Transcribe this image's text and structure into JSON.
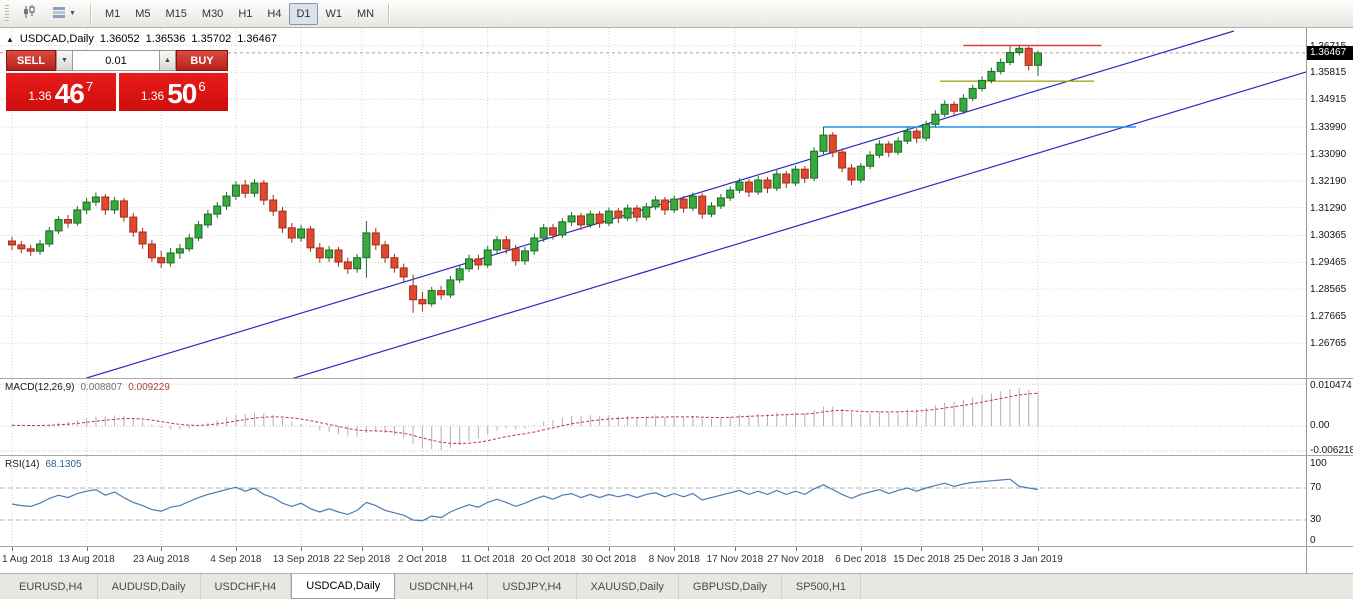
{
  "toolbar": {
    "timeframes": [
      "M1",
      "M5",
      "M15",
      "M30",
      "H1",
      "H4",
      "D1",
      "W1",
      "MN"
    ],
    "active_timeframe": "D1"
  },
  "icons": {
    "title_marker": "▲",
    "dropdown_caret": "▼",
    "spin_up": "▲",
    "spin_down": "▼"
  },
  "chart": {
    "title": {
      "symbol": "USDCAD,Daily",
      "open": "1.36052",
      "high": "1.36536",
      "low": "1.35702",
      "close": "1.36467"
    },
    "trade_panel": {
      "sell_label": "SELL",
      "buy_label": "BUY",
      "volume": "0.01",
      "sell_price": {
        "big": "1.36",
        "pips": "46",
        "pipette": "7"
      },
      "buy_price": {
        "big": "1.36",
        "pips": "50",
        "pipette": "6"
      }
    }
  },
  "colors": {
    "bull_fill": "#38a93f",
    "bull_border": "#1d6b23",
    "bear_fill": "#e0492e",
    "bear_border": "#9c2f1d",
    "channel": "#2b2bc4",
    "grid": "#d4d4d4",
    "macd_bar": "#b0b0b0",
    "macd_signal": "#cc3333",
    "rsi": "#4c7bb3",
    "accent_red": "#d32f2f"
  },
  "chart_data": {
    "type": "candlestick",
    "symbol": "USDCAD",
    "timeframe": "Daily",
    "price_range": {
      "top": 1.373,
      "bottom": 1.256
    },
    "current": {
      "text": "1.36467",
      "price": 1.36467
    },
    "price_axis_labels": [
      {
        "text": "1.36715",
        "price": 1.36715
      },
      {
        "text": "1.35815",
        "price": 1.35815
      },
      {
        "text": "1.34915",
        "price": 1.34915
      },
      {
        "text": "1.33990",
        "price": 1.3399
      },
      {
        "text": "1.33090",
        "price": 1.3309
      },
      {
        "text": "1.32190",
        "price": 1.3219
      },
      {
        "text": "1.31290",
        "price": 1.3129
      },
      {
        "text": "1.30365",
        "price": 1.30365
      },
      {
        "text": "1.29465",
        "price": 1.29465
      },
      {
        "text": "1.28565",
        "price": 1.28565
      },
      {
        "text": "1.27665",
        "price": 1.27665
      },
      {
        "text": "1.26765",
        "price": 1.26765
      }
    ],
    "x_ticks": [
      {
        "i": 0,
        "label": "1 Aug 2018"
      },
      {
        "i": 8,
        "label": "13 Aug 2018"
      },
      {
        "i": 16,
        "label": "23 Aug 2018"
      },
      {
        "i": 24,
        "label": "4 Sep 2018"
      },
      {
        "i": 31,
        "label": "13 Sep 2018"
      },
      {
        "i": 37.5,
        "label": "22 Sep 2018"
      },
      {
        "i": 44,
        "label": "2 Oct 2018"
      },
      {
        "i": 51,
        "label": "11 Oct 2018"
      },
      {
        "i": 57.5,
        "label": "20 Oct 2018"
      },
      {
        "i": 64,
        "label": "30 Oct 2018"
      },
      {
        "i": 71,
        "label": "8 Nov 2018"
      },
      {
        "i": 77.5,
        "label": "17 Nov 2018"
      },
      {
        "i": 84,
        "label": "27 Nov 2018"
      },
      {
        "i": 91,
        "label": "6 Dec 2018"
      },
      {
        "i": 97.5,
        "label": "15 Dec 2018"
      },
      {
        "i": 104,
        "label": "25 Dec 2018"
      },
      {
        "i": 110,
        "label": "3 Jan 2019"
      }
    ],
    "objects": {
      "channel_upper": {
        "color": "#2b2bc4",
        "p1": {
          "i": 8,
          "p": 1.256
        },
        "p2": {
          "i": 131,
          "p": 1.372
        }
      },
      "channel_lower": {
        "color": "#2b2bc4",
        "p1": {
          "i": 8,
          "p": 1.235
        },
        "p2": {
          "i": 145,
          "p": 1.3642
        }
      },
      "resistance": {
        "color": "#e03b3b",
        "price": 1.36715,
        "from_i": 102,
        "to_i": 116.8
      },
      "support_olive": {
        "color": "#a3a71a",
        "price": 1.3552,
        "from_i": 99.5,
        "to_i": 116
      },
      "support_blue": {
        "color": "#1f8fe8",
        "price": 1.3399,
        "from_i": 87,
        "to_i": 120.5
      }
    },
    "candles": [
      [
        1.3018,
        1.3032,
        1.2988,
        1.3005
      ],
      [
        1.3005,
        1.3018,
        1.2978,
        1.2992
      ],
      [
        1.2992,
        1.3005,
        1.2968,
        1.2984
      ],
      [
        1.2984,
        1.3022,
        1.2972,
        1.3008
      ],
      [
        1.3008,
        1.3065,
        1.2998,
        1.3052
      ],
      [
        1.3052,
        1.3102,
        1.3042,
        1.309
      ],
      [
        1.309,
        1.3105,
        1.3062,
        1.3078
      ],
      [
        1.3078,
        1.3135,
        1.3068,
        1.3122
      ],
      [
        1.3122,
        1.3162,
        1.3108,
        1.3148
      ],
      [
        1.3148,
        1.318,
        1.3135,
        1.3165
      ],
      [
        1.3165,
        1.3175,
        1.3105,
        1.3122
      ],
      [
        1.3122,
        1.3165,
        1.3108,
        1.3152
      ],
      [
        1.3152,
        1.3162,
        1.3082,
        1.3098
      ],
      [
        1.3098,
        1.3112,
        1.3032,
        1.3048
      ],
      [
        1.3048,
        1.3062,
        1.2992,
        1.3008
      ],
      [
        1.3008,
        1.3022,
        1.2948,
        1.2962
      ],
      [
        1.2962,
        1.2985,
        1.2928,
        1.2945
      ],
      [
        1.2945,
        1.2995,
        1.2932,
        1.2978
      ],
      [
        1.2978,
        1.3008,
        1.2958,
        1.2992
      ],
      [
        1.2992,
        1.3042,
        1.2982,
        1.3028
      ],
      [
        1.3028,
        1.3085,
        1.3018,
        1.3072
      ],
      [
        1.3072,
        1.3122,
        1.3062,
        1.3108
      ],
      [
        1.3108,
        1.3148,
        1.3095,
        1.3135
      ],
      [
        1.3135,
        1.3182,
        1.3122,
        1.3168
      ],
      [
        1.3168,
        1.3218,
        1.3155,
        1.3205
      ],
      [
        1.3205,
        1.3222,
        1.3162,
        1.3178
      ],
      [
        1.3178,
        1.3225,
        1.3165,
        1.3212
      ],
      [
        1.3212,
        1.3222,
        1.3138,
        1.3155
      ],
      [
        1.3155,
        1.3172,
        1.3102,
        1.3118
      ],
      [
        1.3118,
        1.3132,
        1.3045,
        1.3062
      ],
      [
        1.3062,
        1.3078,
        1.3012,
        1.3028
      ],
      [
        1.3028,
        1.3072,
        1.3015,
        1.3058
      ],
      [
        1.3058,
        1.3068,
        1.2982,
        1.2995
      ],
      [
        1.2995,
        1.3012,
        1.2945,
        1.2962
      ],
      [
        1.2962,
        1.3002,
        1.2948,
        1.2988
      ],
      [
        1.2988,
        1.2998,
        1.2932,
        1.2948
      ],
      [
        1.2948,
        1.2962,
        1.2908,
        1.2925
      ],
      [
        1.2925,
        1.2975,
        1.2912,
        1.2962
      ],
      [
        1.2962,
        1.3085,
        1.2895,
        1.3045
      ],
      [
        1.3045,
        1.3062,
        1.2988,
        1.3005
      ],
      [
        1.3005,
        1.3018,
        1.2945,
        1.2962
      ],
      [
        1.2962,
        1.2975,
        1.2912,
        1.2928
      ],
      [
        1.2928,
        1.2942,
        1.2878,
        1.2898
      ],
      [
        1.2868,
        1.2905,
        1.2778,
        1.2822
      ],
      [
        1.2822,
        1.2848,
        1.2782,
        1.2808
      ],
      [
        1.2808,
        1.2865,
        1.2798,
        1.2852
      ],
      [
        1.2852,
        1.2868,
        1.2822,
        1.2838
      ],
      [
        1.2838,
        1.2902,
        1.2828,
        1.2888
      ],
      [
        1.2888,
        1.2938,
        1.2878,
        1.2925
      ],
      [
        1.2925,
        1.2972,
        1.2915,
        1.2958
      ],
      [
        1.2958,
        1.2972,
        1.2922,
        1.2938
      ],
      [
        1.2938,
        1.3002,
        1.2928,
        1.2988
      ],
      [
        1.2988,
        1.3035,
        1.2975,
        1.3022
      ],
      [
        1.3022,
        1.3035,
        1.2975,
        1.2992
      ],
      [
        1.2992,
        1.3005,
        1.2935,
        1.2952
      ],
      [
        1.2952,
        1.2998,
        1.2938,
        1.2985
      ],
      [
        1.2985,
        1.3042,
        1.2972,
        1.3028
      ],
      [
        1.3028,
        1.3075,
        1.3015,
        1.3062
      ],
      [
        1.3062,
        1.3075,
        1.3022,
        1.3038
      ],
      [
        1.3038,
        1.3095,
        1.3028,
        1.3082
      ],
      [
        1.3082,
        1.3115,
        1.3068,
        1.3102
      ],
      [
        1.3102,
        1.3112,
        1.3055,
        1.3072
      ],
      [
        1.3072,
        1.312,
        1.3062,
        1.3108
      ],
      [
        1.3108,
        1.3118,
        1.3062,
        1.3078
      ],
      [
        1.3078,
        1.313,
        1.3068,
        1.3118
      ],
      [
        1.3118,
        1.3128,
        1.3078,
        1.3095
      ],
      [
        1.3095,
        1.314,
        1.3085,
        1.3128
      ],
      [
        1.3128,
        1.3138,
        1.3082,
        1.3098
      ],
      [
        1.3098,
        1.3145,
        1.3088,
        1.3132
      ],
      [
        1.3132,
        1.3168,
        1.3122,
        1.3155
      ],
      [
        1.3155,
        1.3165,
        1.3105,
        1.3122
      ],
      [
        1.3122,
        1.317,
        1.3112,
        1.3158
      ],
      [
        1.3158,
        1.3168,
        1.3112,
        1.3128
      ],
      [
        1.3128,
        1.318,
        1.3118,
        1.3168
      ],
      [
        1.3168,
        1.3178,
        1.3092,
        1.3108
      ],
      [
        1.3108,
        1.3148,
        1.3098,
        1.3135
      ],
      [
        1.3135,
        1.3175,
        1.3125,
        1.3162
      ],
      [
        1.3162,
        1.32,
        1.3152,
        1.3188
      ],
      [
        1.3188,
        1.3228,
        1.3178,
        1.3215
      ],
      [
        1.3215,
        1.3225,
        1.3165,
        1.3182
      ],
      [
        1.3182,
        1.3235,
        1.3172,
        1.3222
      ],
      [
        1.3222,
        1.3232,
        1.3178,
        1.3195
      ],
      [
        1.3195,
        1.3255,
        1.3185,
        1.3242
      ],
      [
        1.3242,
        1.3252,
        1.3195,
        1.3212
      ],
      [
        1.3212,
        1.327,
        1.3202,
        1.3258
      ],
      [
        1.3258,
        1.3268,
        1.3212,
        1.3228
      ],
      [
        1.3228,
        1.3332,
        1.3218,
        1.3318
      ],
      [
        1.3318,
        1.34,
        1.3308,
        1.3372
      ],
      [
        1.3372,
        1.3382,
        1.3298,
        1.3315
      ],
      [
        1.3315,
        1.3328,
        1.3248,
        1.3262
      ],
      [
        1.3262,
        1.3275,
        1.3205,
        1.3222
      ],
      [
        1.3222,
        1.328,
        1.3212,
        1.3268
      ],
      [
        1.3268,
        1.3318,
        1.3258,
        1.3305
      ],
      [
        1.3305,
        1.3355,
        1.3295,
        1.3342
      ],
      [
        1.3342,
        1.3352,
        1.3298,
        1.3315
      ],
      [
        1.3315,
        1.3365,
        1.3305,
        1.3352
      ],
      [
        1.3352,
        1.3398,
        1.3342,
        1.3385
      ],
      [
        1.3385,
        1.3395,
        1.3345,
        1.3362
      ],
      [
        1.3362,
        1.342,
        1.3352,
        1.3408
      ],
      [
        1.3408,
        1.3455,
        1.3398,
        1.3442
      ],
      [
        1.3442,
        1.3488,
        1.3432,
        1.3475
      ],
      [
        1.3475,
        1.3485,
        1.3435,
        1.3452
      ],
      [
        1.3452,
        1.3508,
        1.3442,
        1.3495
      ],
      [
        1.3495,
        1.354,
        1.3485,
        1.3528
      ],
      [
        1.3528,
        1.3568,
        1.3518,
        1.3555
      ],
      [
        1.3555,
        1.3598,
        1.3545,
        1.3585
      ],
      [
        1.3585,
        1.3628,
        1.3575,
        1.3615
      ],
      [
        1.3615,
        1.3668,
        1.3605,
        1.3648
      ],
      [
        1.3648,
        1.36715,
        1.3638,
        1.3662
      ],
      [
        1.3662,
        1.3668,
        1.3588,
        1.3605
      ],
      [
        1.36052,
        1.36536,
        1.35702,
        1.36467
      ]
    ],
    "indicators": {
      "macd": {
        "label": "MACD(12,26,9)",
        "value_main": "0.008807",
        "value_signal": "0.009229",
        "range": {
          "top": 0.0118,
          "bottom": -0.0075
        },
        "axis_labels": [
          {
            "text": "0.010474",
            "v": 0.010474
          },
          {
            "text": "0.00",
            "v": 0
          },
          {
            "text": "-0.006218",
            "v": -0.006218
          }
        ],
        "histogram": [
          0.0002,
          0.0001,
          0.0,
          0.0001,
          0.0004,
          0.0008,
          0.0011,
          0.0015,
          0.002,
          0.0024,
          0.0025,
          0.0027,
          0.0025,
          0.002,
          0.0013,
          0.0004,
          -0.0004,
          -0.0008,
          -0.0009,
          -0.0006,
          0.0,
          0.0008,
          0.0015,
          0.0022,
          0.0029,
          0.0031,
          0.0034,
          0.0032,
          0.0028,
          0.002,
          0.0011,
          0.0006,
          -0.0002,
          -0.0011,
          -0.0015,
          -0.002,
          -0.0026,
          -0.0027,
          -0.0018,
          -0.0014,
          -0.0017,
          -0.0023,
          -0.003,
          -0.0045,
          -0.0055,
          -0.0058,
          -0.006,
          -0.0055,
          -0.0047,
          -0.0037,
          -0.0031,
          -0.0022,
          -0.0011,
          -0.0006,
          -0.0008,
          -0.0005,
          0.0003,
          0.0012,
          0.0015,
          0.0021,
          0.0026,
          0.0025,
          0.0027,
          0.0025,
          0.0027,
          0.0024,
          0.0026,
          0.0023,
          0.0024,
          0.0027,
          0.0023,
          0.0025,
          0.0022,
          0.0025,
          0.0018,
          0.0018,
          0.002,
          0.0024,
          0.0029,
          0.0028,
          0.0031,
          0.0029,
          0.0034,
          0.0031,
          0.0035,
          0.0032,
          0.004,
          0.0049,
          0.0049,
          0.0043,
          0.0034,
          0.0031,
          0.0032,
          0.0036,
          0.0034,
          0.0037,
          0.0041,
          0.0041,
          0.0046,
          0.0052,
          0.0059,
          0.0061,
          0.0066,
          0.0072,
          0.0077,
          0.0082,
          0.0087,
          0.0092,
          0.0096,
          0.0091,
          0.0088
        ]
      },
      "rsi": {
        "label": "RSI(14)",
        "value": "68.1305",
        "levels": [
          70,
          30
        ],
        "axis_labels": [
          {
            "text": "100",
            "v": 100
          },
          {
            "text": "70",
            "v": 70
          },
          {
            "text": "30",
            "v": 30
          },
          {
            "text": "0",
            "v": 0
          }
        ],
        "values": [
          50,
          48,
          47,
          51,
          57,
          61,
          58,
          63,
          66,
          68,
          61,
          65,
          58,
          52,
          48,
          43,
          41,
          46,
          48,
          53,
          58,
          62,
          65,
          68,
          71,
          66,
          70,
          62,
          58,
          51,
          47,
          51,
          44,
          40,
          44,
          40,
          37,
          42,
          52,
          48,
          42,
          39,
          36,
          30,
          29,
          35,
          33,
          40,
          45,
          49,
          46,
          52,
          56,
          52,
          47,
          51,
          56,
          60,
          56,
          61,
          63,
          58,
          62,
          58,
          62,
          59,
          62,
          58,
          62,
          64,
          59,
          63,
          59,
          63,
          55,
          58,
          61,
          64,
          67,
          62,
          66,
          62,
          67,
          62,
          66,
          62,
          69,
          74,
          68,
          62,
          57,
          62,
          65,
          68,
          63,
          67,
          70,
          66,
          70,
          73,
          76,
          72,
          75,
          77,
          78,
          79,
          80,
          81,
          72,
          70,
          68.13
        ]
      }
    }
  },
  "tabs": {
    "items": [
      "EURUSD,H4",
      "AUDUSD,Daily",
      "USDCHF,H4",
      "USDCAD,Daily",
      "USDCNH,H4",
      "USDJPY,H4",
      "XAUUSD,Daily",
      "GBPUSD,Daily",
      "SP500,H1"
    ],
    "active": "USDCAD,Daily"
  }
}
